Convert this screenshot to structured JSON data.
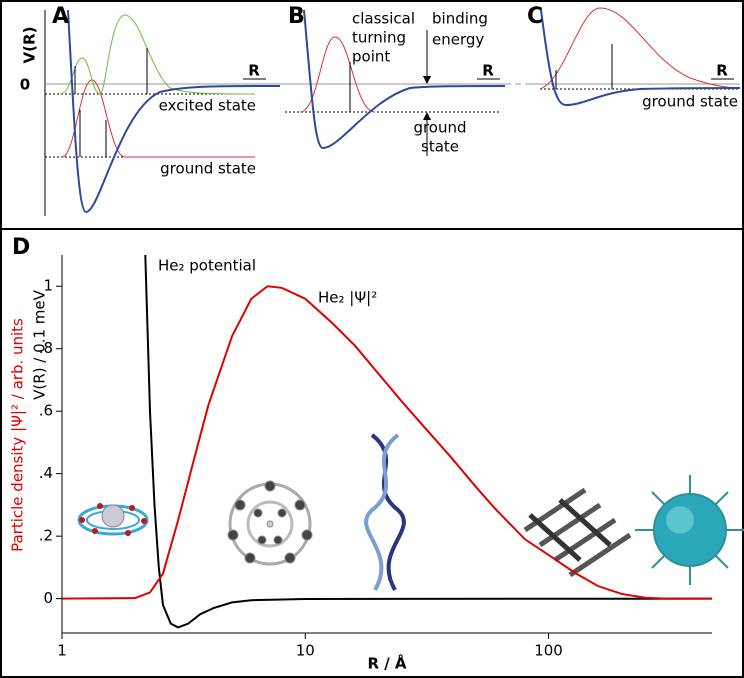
{
  "panels": {
    "a": {
      "letter": "A",
      "y_label": "V(R)",
      "x_label": "R",
      "zero": "0",
      "excited": "excited state",
      "ground": "ground state"
    },
    "b": {
      "letter": "B",
      "turning": [
        "classical",
        "turning",
        "point"
      ],
      "binding": [
        "binding",
        "energy"
      ],
      "x_label": "R",
      "ground": [
        "ground",
        "state"
      ]
    },
    "c": {
      "letter": "C",
      "x_label": "R",
      "ground": "ground state"
    }
  },
  "chart_data": {
    "type": "line",
    "panel": "D",
    "x_label": "R / Å",
    "y_label": "V(R) / 0.1 meV",
    "y_label_2": "Particle density |Ψ|² / arb. units",
    "log_x": true,
    "xlim": [
      1,
      470
    ],
    "xticks": [
      1,
      10,
      100
    ],
    "ylim": [
      -0.11,
      1.1
    ],
    "yticks": [
      0,
      {
        "value": 0.2,
        "label": ".2"
      },
      {
        "value": 0.4,
        "label": ".4"
      },
      {
        "value": 0.6,
        "label": ".6"
      },
      {
        "value": 0.8,
        "label": ".8"
      },
      1
    ],
    "series": [
      {
        "name": "He₂ potential",
        "color": "#000000",
        "x": [
          2.2,
          2.3,
          2.4,
          2.5,
          2.6,
          2.8,
          3.0,
          3.3,
          3.7,
          4.2,
          5,
          6,
          10,
          470
        ],
        "values": [
          1.1,
          0.6,
          0.3,
          0.1,
          -0.02,
          -0.08,
          -0.092,
          -0.08,
          -0.05,
          -0.03,
          -0.012,
          -0.005,
          -0.001,
          0
        ]
      },
      {
        "name": "He₂ |Ψ|²",
        "color": "#e00000",
        "x": [
          1,
          2,
          2.3,
          2.6,
          3,
          3.5,
          4,
          5,
          6,
          7,
          8,
          10,
          13,
          16,
          20,
          25,
          30,
          40,
          50,
          60,
          80,
          100,
          130,
          160,
          200,
          250,
          300,
          470
        ],
        "values": [
          0,
          0.002,
          0.02,
          0.08,
          0.25,
          0.45,
          0.62,
          0.84,
          0.96,
          1.0,
          0.995,
          0.96,
          0.88,
          0.81,
          0.72,
          0.63,
          0.56,
          0.45,
          0.36,
          0.29,
          0.19,
          0.14,
          0.08,
          0.04,
          0.015,
          0.003,
          0,
          0
        ]
      }
    ]
  }
}
